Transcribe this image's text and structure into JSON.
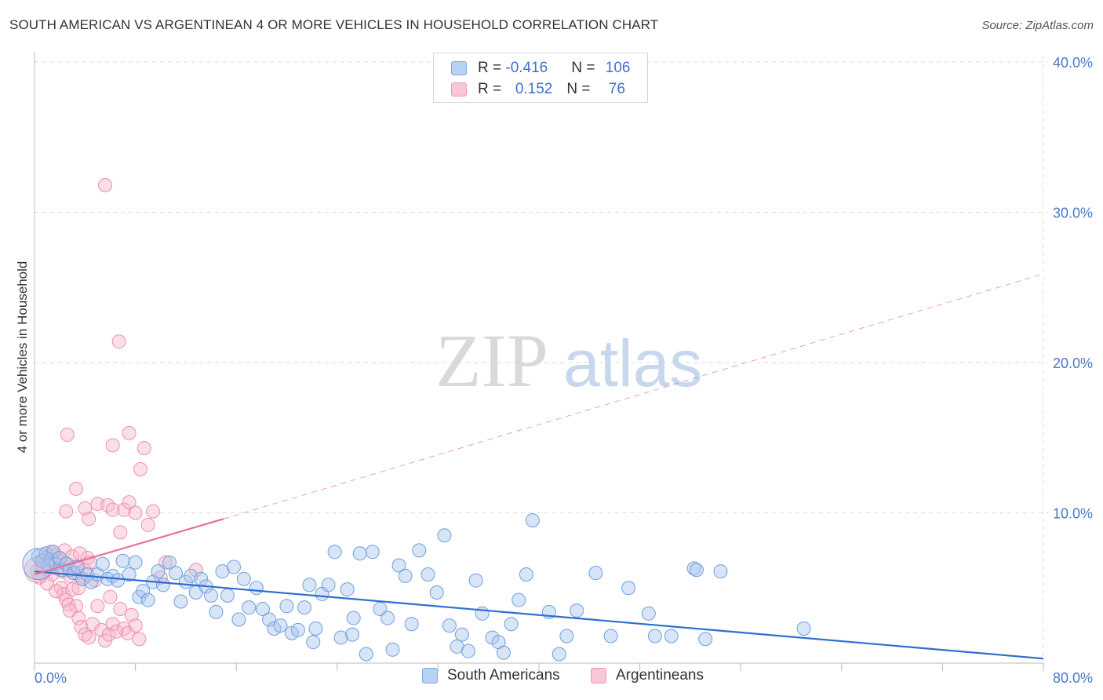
{
  "title": "SOUTH AMERICAN VS ARGENTINEAN 4 OR MORE VEHICLES IN HOUSEHOLD CORRELATION CHART",
  "source": "Source: ZipAtlas.com",
  "watermark": {
    "zip": "ZIP",
    "atlas": "atlas"
  },
  "colors": {
    "blue_fill": "#a8c6ee",
    "blue_stroke": "#6f9fde",
    "blue_line": "#2f6fd0",
    "pink_fill": "#f6b8cb",
    "pink_stroke": "#ee8fae",
    "pink_line": "#e8709a",
    "tick_text": "#4a78c8",
    "grid": "#dcdcdc"
  },
  "legend": {
    "rows": [
      {
        "r_label": "R = ",
        "r_value": "-0.416",
        "n_label": "N = ",
        "n_value": "106",
        "series": "blue"
      },
      {
        "r_label": "R = ",
        "r_value": "0.152",
        "n_label": "N = ",
        "n_value": "76",
        "series": "pink"
      }
    ]
  },
  "bottom_legend": [
    "South Americans",
    "Argentineans"
  ],
  "chart_data": {
    "type": "scatter",
    "title": "SOUTH AMERICAN VS ARGENTINEAN 4 OR MORE VEHICLES IN HOUSEHOLD CORRELATION CHART",
    "xlabel": "",
    "ylabel": "4 or more Vehicles in Household",
    "xlim": [
      0,
      80
    ],
    "ylim": [
      0,
      40
    ],
    "x_tick_labels": [
      "0.0%",
      "80.0%"
    ],
    "y_ticks": [
      10,
      20,
      30,
      40
    ],
    "y_tick_labels": [
      "10.0%",
      "20.0%",
      "30.0%",
      "40.0%"
    ],
    "grid": true,
    "series": [
      {
        "name": "South Americans",
        "color": "blue",
        "R": -0.416,
        "N": 106,
        "trend": {
          "x0": 0,
          "y0": 6.1,
          "x1": 80,
          "y1": 0.3,
          "style": "solid"
        },
        "points": [
          [
            0.3,
            7.1
          ],
          [
            0.6,
            6.8
          ],
          [
            0.9,
            7.3
          ],
          [
            1.1,
            6.5
          ],
          [
            1.3,
            6.9
          ],
          [
            1.5,
            7.4
          ],
          [
            1.7,
            6.6
          ],
          [
            2.0,
            7.0
          ],
          [
            2.2,
            6.2
          ],
          [
            2.5,
            6.6
          ],
          [
            2.8,
            6.2
          ],
          [
            3.1,
            6.0
          ],
          [
            3.4,
            6.4
          ],
          [
            3.8,
            5.6
          ],
          [
            4.2,
            5.9
          ],
          [
            4.5,
            5.4
          ],
          [
            5.0,
            5.9
          ],
          [
            5.4,
            6.6
          ],
          [
            5.8,
            5.6
          ],
          [
            6.2,
            5.8
          ],
          [
            6.6,
            5.5
          ],
          [
            7.0,
            6.8
          ],
          [
            7.5,
            5.9
          ],
          [
            8.0,
            6.7
          ],
          [
            8.3,
            4.4
          ],
          [
            8.6,
            4.8
          ],
          [
            9.0,
            4.2
          ],
          [
            9.4,
            5.4
          ],
          [
            9.8,
            6.1
          ],
          [
            10.2,
            5.2
          ],
          [
            10.7,
            6.7
          ],
          [
            11.2,
            6.0
          ],
          [
            11.6,
            4.1
          ],
          [
            12.0,
            5.4
          ],
          [
            12.4,
            5.8
          ],
          [
            12.8,
            4.7
          ],
          [
            13.2,
            5.6
          ],
          [
            13.6,
            5.1
          ],
          [
            14.0,
            4.5
          ],
          [
            14.4,
            3.4
          ],
          [
            14.9,
            6.1
          ],
          [
            15.3,
            4.5
          ],
          [
            15.8,
            6.4
          ],
          [
            16.2,
            2.9
          ],
          [
            16.6,
            5.6
          ],
          [
            17.0,
            3.7
          ],
          [
            17.6,
            5.0
          ],
          [
            18.1,
            3.6
          ],
          [
            18.6,
            2.9
          ],
          [
            19.0,
            2.3
          ],
          [
            19.5,
            2.5
          ],
          [
            20.0,
            3.8
          ],
          [
            20.4,
            2.0
          ],
          [
            20.9,
            2.2
          ],
          [
            21.4,
            3.7
          ],
          [
            21.8,
            5.2
          ],
          [
            22.3,
            2.3
          ],
          [
            22.8,
            4.6
          ],
          [
            23.3,
            5.2
          ],
          [
            23.8,
            7.4
          ],
          [
            24.3,
            1.7
          ],
          [
            24.8,
            4.9
          ],
          [
            25.3,
            3.0
          ],
          [
            25.8,
            7.3
          ],
          [
            26.3,
            0.6
          ],
          [
            26.8,
            7.4
          ],
          [
            27.4,
            3.6
          ],
          [
            28.0,
            3.0
          ],
          [
            28.4,
            0.9
          ],
          [
            28.9,
            6.5
          ],
          [
            29.4,
            5.8
          ],
          [
            29.9,
            2.6
          ],
          [
            30.5,
            7.5
          ],
          [
            31.2,
            5.9
          ],
          [
            31.9,
            4.7
          ],
          [
            32.5,
            8.5
          ],
          [
            32.9,
            2.5
          ],
          [
            33.5,
            1.1
          ],
          [
            33.9,
            1.9
          ],
          [
            34.4,
            0.8
          ],
          [
            35.0,
            5.5
          ],
          [
            35.5,
            3.3
          ],
          [
            36.3,
            1.7
          ],
          [
            36.8,
            1.4
          ],
          [
            37.2,
            0.7
          ],
          [
            37.8,
            2.6
          ],
          [
            38.4,
            4.2
          ],
          [
            39.0,
            5.9
          ],
          [
            39.5,
            9.5
          ],
          [
            40.8,
            3.4
          ],
          [
            41.6,
            0.6
          ],
          [
            42.2,
            1.8
          ],
          [
            43.0,
            3.5
          ],
          [
            44.5,
            6.0
          ],
          [
            45.7,
            1.8
          ],
          [
            47.1,
            5.0
          ],
          [
            48.7,
            3.3
          ],
          [
            49.2,
            1.8
          ],
          [
            50.5,
            1.8
          ],
          [
            52.3,
            6.3
          ],
          [
            52.5,
            6.2
          ],
          [
            53.2,
            1.6
          ],
          [
            54.4,
            6.1
          ],
          [
            61.0,
            2.3
          ],
          [
            25.2,
            1.9
          ],
          [
            22.1,
            1.4
          ]
        ]
      },
      {
        "name": "Argentineans",
        "color": "pink",
        "R": 0.152,
        "N": 76,
        "trend": {
          "x0": 0,
          "y0": 5.9,
          "x1": 15,
          "y1": 9.6,
          "style": "solid",
          "ext_x1": 80,
          "ext_y1": 25.9,
          "ext_style": "dashed"
        },
        "points": [
          [
            0.2,
            6.1
          ],
          [
            0.4,
            5.7
          ],
          [
            0.6,
            6.5
          ],
          [
            0.8,
            7.0
          ],
          [
            1.0,
            6.2
          ],
          [
            1.2,
            6.8
          ],
          [
            1.4,
            5.9
          ],
          [
            1.6,
            7.2
          ],
          [
            1.8,
            6.3
          ],
          [
            2.0,
            6.9
          ],
          [
            2.2,
            6.1
          ],
          [
            2.4,
            7.5
          ],
          [
            2.6,
            6.6
          ],
          [
            2.8,
            5.8
          ],
          [
            3.0,
            7.1
          ],
          [
            3.2,
            6.4
          ],
          [
            3.4,
            6.0
          ],
          [
            3.6,
            7.3
          ],
          [
            3.8,
            5.6
          ],
          [
            4.0,
            6.2
          ],
          [
            4.2,
            7.0
          ],
          [
            4.4,
            6.7
          ],
          [
            0.5,
            6.8
          ],
          [
            1.3,
            7.4
          ],
          [
            2.1,
            5.0
          ],
          [
            2.3,
            4.6
          ],
          [
            2.5,
            4.2
          ],
          [
            2.7,
            3.9
          ],
          [
            3.0,
            4.9
          ],
          [
            3.3,
            3.8
          ],
          [
            3.5,
            3.0
          ],
          [
            3.7,
            2.4
          ],
          [
            4.0,
            1.9
          ],
          [
            4.3,
            1.7
          ],
          [
            4.6,
            2.6
          ],
          [
            5.0,
            3.8
          ],
          [
            5.3,
            2.2
          ],
          [
            5.6,
            1.5
          ],
          [
            5.9,
            1.9
          ],
          [
            6.2,
            2.6
          ],
          [
            6.5,
            2.1
          ],
          [
            6.8,
            3.6
          ],
          [
            7.1,
            2.3
          ],
          [
            7.4,
            2.0
          ],
          [
            7.7,
            3.2
          ],
          [
            8.0,
            2.5
          ],
          [
            8.3,
            1.6
          ],
          [
            4.0,
            10.3
          ],
          [
            4.3,
            9.6
          ],
          [
            5.0,
            10.6
          ],
          [
            5.8,
            10.5
          ],
          [
            6.2,
            10.2
          ],
          [
            6.8,
            8.7
          ],
          [
            7.1,
            10.2
          ],
          [
            7.5,
            10.7
          ],
          [
            8.0,
            10.0
          ],
          [
            8.4,
            12.9
          ],
          [
            8.7,
            14.3
          ],
          [
            9.0,
            9.2
          ],
          [
            9.4,
            10.1
          ],
          [
            2.5,
            10.1
          ],
          [
            3.3,
            11.6
          ],
          [
            2.6,
            15.2
          ],
          [
            6.2,
            14.5
          ],
          [
            7.5,
            15.3
          ],
          [
            5.6,
            31.8
          ],
          [
            6.7,
            21.4
          ],
          [
            10.0,
            5.7
          ],
          [
            10.4,
            6.7
          ],
          [
            12.8,
            6.2
          ],
          [
            3.5,
            5.0
          ],
          [
            4.8,
            5.5
          ],
          [
            6.0,
            4.4
          ],
          [
            1.0,
            5.3
          ],
          [
            1.7,
            4.8
          ],
          [
            2.8,
            3.5
          ]
        ]
      }
    ]
  }
}
